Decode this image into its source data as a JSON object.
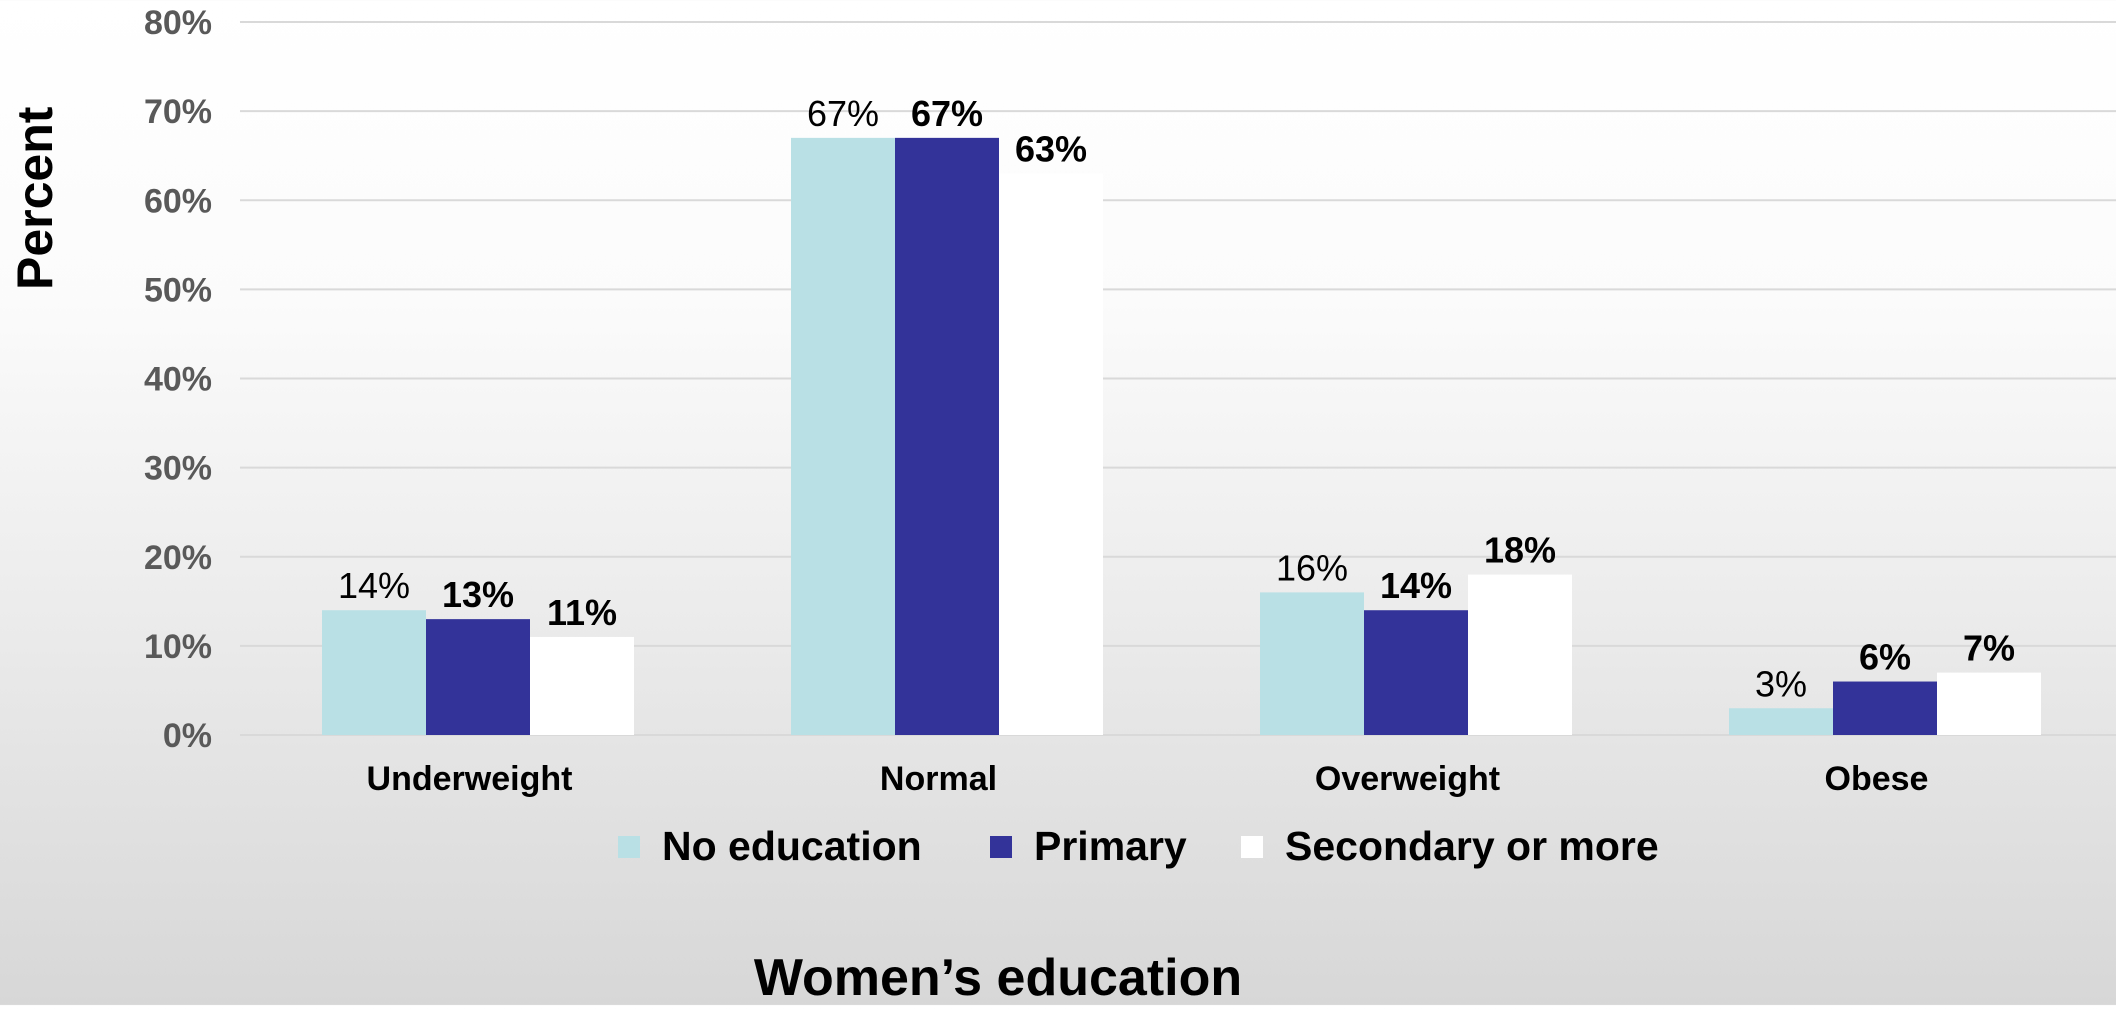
{
  "chart_data": {
    "type": "bar",
    "title": "",
    "xlabel": "Women’s education",
    "ylabel": "Percent",
    "categories": [
      "Underweight",
      "Normal",
      "Overweight",
      "Obese"
    ],
    "ylim": [
      0,
      80
    ],
    "yticks": [
      0,
      10,
      20,
      30,
      40,
      50,
      60,
      70,
      80
    ],
    "ytick_labels": [
      "0%",
      "10%",
      "20%",
      "30%",
      "40%",
      "50%",
      "60%",
      "70%",
      "80%"
    ],
    "grid": true,
    "legend": "bottom",
    "series": [
      {
        "name": "No education",
        "color": "#b9e0e5",
        "values": [
          14,
          67,
          16,
          3
        ],
        "labels": [
          "14%",
          "67%",
          "16%",
          "3%"
        ],
        "label_bold": false
      },
      {
        "name": "Primary",
        "color": "#333399",
        "values": [
          13,
          67,
          14,
          6
        ],
        "labels": [
          "13%",
          "67%",
          "14%",
          "6%"
        ],
        "label_bold": true
      },
      {
        "name": "Secondary or more",
        "color": "#ffffff",
        "values": [
          11,
          63,
          18,
          7
        ],
        "labels": [
          "11%",
          "63%",
          "18%",
          "7%"
        ],
        "label_bold": true
      }
    ]
  }
}
